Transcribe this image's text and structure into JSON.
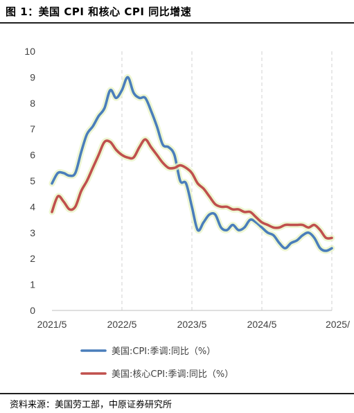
{
  "figure": {
    "title": "图 1：美国 CPI 和核心 CPI 同比增速",
    "source": "资料来源：美国劳工部，中原证券研究所"
  },
  "chart_data": {
    "type": "line",
    "title": "",
    "xlabel": "",
    "ylabel": "",
    "ylim": [
      0,
      10
    ],
    "yticks": [
      "0",
      "1",
      "2",
      "3",
      "4",
      "5",
      "6",
      "7",
      "8",
      "9",
      "10"
    ],
    "xticks": [
      {
        "label": "2021/5",
        "index": 0
      },
      {
        "label": "2022/5",
        "index": 12
      },
      {
        "label": "2023/5",
        "index": 24
      },
      {
        "label": "2024/5",
        "index": 36
      },
      {
        "label": "2025/",
        "index": 48
      }
    ],
    "x": [
      "2021/5",
      "2021/6",
      "2021/7",
      "2021/8",
      "2021/9",
      "2021/10",
      "2021/11",
      "2021/12",
      "2022/1",
      "2022/2",
      "2022/3",
      "2022/4",
      "2022/5",
      "2022/6",
      "2022/7",
      "2022/8",
      "2022/9",
      "2022/10",
      "2022/11",
      "2022/12",
      "2023/1",
      "2023/2",
      "2023/3",
      "2023/4",
      "2023/5",
      "2023/6",
      "2023/7",
      "2023/8",
      "2023/9",
      "2023/10",
      "2023/11",
      "2023/12",
      "2024/1",
      "2024/2",
      "2024/3",
      "2024/4",
      "2024/5",
      "2024/6",
      "2024/7",
      "2024/8",
      "2024/9",
      "2024/10",
      "2024/11",
      "2024/12",
      "2025/1",
      "2025/2",
      "2025/3",
      "2025/4",
      "2025/5"
    ],
    "grid": "vertical-dashed",
    "legend": "bottom",
    "series": [
      {
        "name": "美国:CPI:季调:同比（%）",
        "color": "#4a7ebb",
        "values": [
          4.9,
          5.3,
          5.3,
          5.2,
          5.3,
          6.1,
          6.8,
          7.1,
          7.5,
          7.8,
          8.5,
          8.2,
          8.5,
          9.0,
          8.4,
          8.2,
          8.2,
          7.7,
          7.1,
          6.4,
          6.3,
          6.0,
          5.0,
          4.9,
          4.0,
          3.1,
          3.4,
          3.7,
          3.7,
          3.2,
          3.1,
          3.3,
          3.1,
          3.2,
          3.5,
          3.4,
          3.2,
          3.0,
          2.9,
          2.6,
          2.4,
          2.6,
          2.7,
          2.9,
          3.0,
          2.8,
          2.4,
          2.3,
          2.4
        ]
      },
      {
        "name": "美国:核心CPI:季调:同比（%）",
        "color": "#c0504d",
        "values": [
          3.8,
          4.4,
          4.2,
          3.9,
          4.0,
          4.6,
          5.0,
          5.5,
          6.0,
          6.5,
          6.5,
          6.2,
          6.0,
          5.9,
          5.9,
          6.3,
          6.6,
          6.3,
          6.0,
          5.7,
          5.5,
          5.5,
          5.6,
          5.5,
          5.3,
          4.9,
          4.7,
          4.4,
          4.1,
          4.0,
          4.0,
          3.9,
          3.9,
          3.8,
          3.8,
          3.6,
          3.4,
          3.3,
          3.2,
          3.2,
          3.3,
          3.3,
          3.3,
          3.3,
          3.2,
          3.3,
          3.1,
          2.8,
          2.8
        ]
      }
    ]
  }
}
